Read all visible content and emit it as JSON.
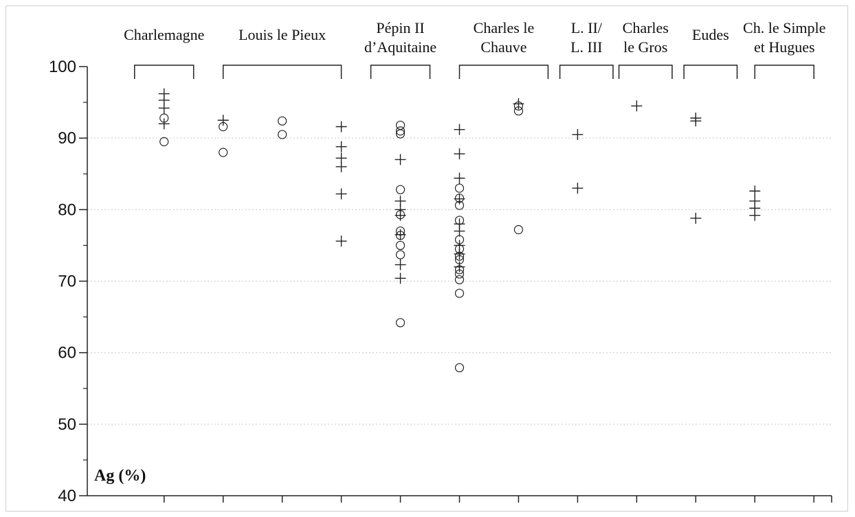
{
  "chart_data": {
    "type": "scatter",
    "title": "",
    "xlabel": "",
    "ylabel": "Ag (%)",
    "ylim": [
      40,
      100
    ],
    "yticks": [
      40,
      50,
      60,
      70,
      80,
      90,
      100
    ],
    "grid": "horizontal dotted",
    "legend": "none",
    "groups": [
      {
        "label": [
          "Charlemagne"
        ],
        "x_range": [
          0.5,
          1.5
        ]
      },
      {
        "label": [
          "Louis le Pieux"
        ],
        "x_range": [
          2.0,
          4.0
        ]
      },
      {
        "label": [
          "Pépin II",
          "d’Aquitaine"
        ],
        "x_range": [
          4.5,
          5.5
        ]
      },
      {
        "label": [
          "Charles le",
          "Chauve"
        ],
        "x_range": [
          6.0,
          7.5
        ]
      },
      {
        "label": [
          "L. II/",
          "L. III"
        ],
        "x_range": [
          7.7,
          8.6
        ]
      },
      {
        "label": [
          "Charles",
          "le Gros"
        ],
        "x_range": [
          8.7,
          9.6
        ]
      },
      {
        "label": [
          "Eudes"
        ],
        "x_range": [
          9.8,
          10.7
        ]
      },
      {
        "label": [
          "Ch. le Simple",
          "et Hugues"
        ],
        "x_range": [
          11.0,
          12.0
        ]
      }
    ],
    "xlim": [
      -0.3,
      12.3
    ],
    "series": [
      {
        "marker": "cross",
        "points": [
          [
            1,
            96.2
          ],
          [
            1,
            95.3
          ],
          [
            1,
            94.2
          ],
          [
            1,
            92.0
          ],
          [
            2,
            92.5
          ],
          [
            4,
            91.6
          ],
          [
            4,
            88.8
          ],
          [
            4,
            87.2
          ],
          [
            4,
            86.0
          ],
          [
            4,
            82.2
          ],
          [
            4,
            75.6
          ],
          [
            5,
            87.0
          ],
          [
            5,
            81.2
          ],
          [
            5,
            80.0
          ],
          [
            5,
            79.2
          ],
          [
            5,
            76.5
          ],
          [
            5,
            72.3
          ],
          [
            5,
            70.4
          ],
          [
            6,
            91.2
          ],
          [
            6,
            87.8
          ],
          [
            6,
            84.4
          ],
          [
            6,
            81.5
          ],
          [
            6,
            78.0
          ],
          [
            6,
            77.0
          ],
          [
            6,
            75.0
          ],
          [
            6,
            73.8
          ],
          [
            6,
            72.0
          ],
          [
            7,
            94.8
          ],
          [
            8,
            90.5
          ],
          [
            8,
            83.0
          ],
          [
            9,
            94.5
          ],
          [
            10,
            92.8
          ],
          [
            10,
            92.4
          ],
          [
            10,
            78.8
          ],
          [
            11,
            82.6
          ],
          [
            11,
            81.2
          ],
          [
            11,
            80.2
          ],
          [
            11,
            79.2
          ]
        ]
      },
      {
        "marker": "circle",
        "points": [
          [
            1,
            92.8
          ],
          [
            1,
            89.5
          ],
          [
            2,
            91.6
          ],
          [
            2,
            88.0
          ],
          [
            3,
            92.4
          ],
          [
            3,
            90.5
          ],
          [
            5,
            91.8
          ],
          [
            5,
            91.0
          ],
          [
            5,
            90.6
          ],
          [
            5,
            82.8
          ],
          [
            5,
            79.3
          ],
          [
            5,
            77.0
          ],
          [
            5,
            76.4
          ],
          [
            5,
            75.0
          ],
          [
            5,
            73.7
          ],
          [
            5,
            64.2
          ],
          [
            6,
            83.0
          ],
          [
            6,
            81.6
          ],
          [
            6,
            80.6
          ],
          [
            6,
            78.5
          ],
          [
            6,
            75.8
          ],
          [
            6,
            74.5
          ],
          [
            6,
            73.5
          ],
          [
            6,
            73.0
          ],
          [
            6,
            71.6
          ],
          [
            6,
            71.0
          ],
          [
            6,
            70.2
          ],
          [
            6,
            68.3
          ],
          [
            6,
            57.9
          ],
          [
            7,
            94.5
          ],
          [
            7,
            93.8
          ],
          [
            7,
            77.2
          ]
        ]
      }
    ]
  }
}
